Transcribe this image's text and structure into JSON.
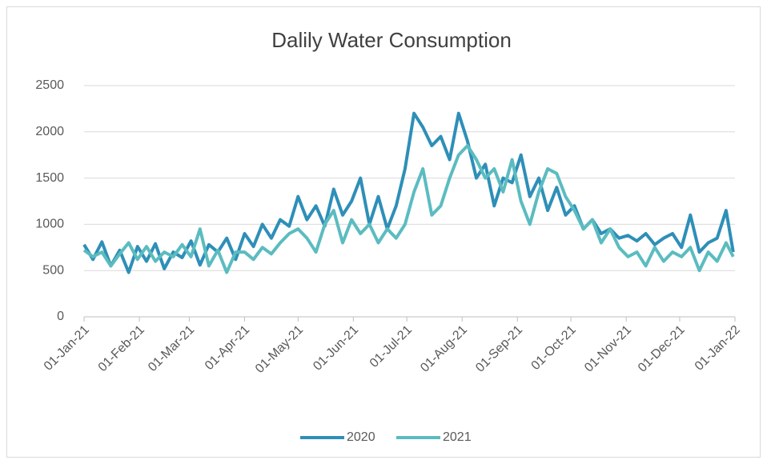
{
  "chart_data": {
    "type": "line",
    "title": "Dalily Water Consumption",
    "x": [
      "2021-01-01",
      "2021-01-06",
      "2021-01-11",
      "2021-01-16",
      "2021-01-21",
      "2021-01-26",
      "2021-01-31",
      "2021-02-05",
      "2021-02-10",
      "2021-02-15",
      "2021-02-20",
      "2021-02-25",
      "2021-03-02",
      "2021-03-07",
      "2021-03-12",
      "2021-03-17",
      "2021-03-22",
      "2021-03-27",
      "2021-04-01",
      "2021-04-06",
      "2021-04-11",
      "2021-04-16",
      "2021-04-21",
      "2021-04-26",
      "2021-05-01",
      "2021-05-06",
      "2021-05-11",
      "2021-05-16",
      "2021-05-21",
      "2021-05-26",
      "2021-05-31",
      "2021-06-05",
      "2021-06-10",
      "2021-06-15",
      "2021-06-20",
      "2021-06-25",
      "2021-06-30",
      "2021-07-05",
      "2021-07-10",
      "2021-07-15",
      "2021-07-20",
      "2021-07-25",
      "2021-07-30",
      "2021-08-04",
      "2021-08-09",
      "2021-08-14",
      "2021-08-19",
      "2021-08-24",
      "2021-08-29",
      "2021-09-03",
      "2021-09-08",
      "2021-09-13",
      "2021-09-18",
      "2021-09-23",
      "2021-09-28",
      "2021-10-03",
      "2021-10-08",
      "2021-10-13",
      "2021-10-18",
      "2021-10-23",
      "2021-10-28",
      "2021-11-02",
      "2021-11-07",
      "2021-11-12",
      "2021-11-17",
      "2021-11-22",
      "2021-11-27",
      "2021-12-02",
      "2021-12-07",
      "2021-12-12",
      "2021-12-17",
      "2021-12-22",
      "2021-12-27",
      "2021-12-31"
    ],
    "series": [
      {
        "name": "2020",
        "color": "#2e8fb8",
        "values": [
          780,
          620,
          810,
          550,
          720,
          480,
          760,
          600,
          790,
          520,
          700,
          640,
          820,
          560,
          780,
          700,
          850,
          620,
          900,
          760,
          1000,
          850,
          1050,
          980,
          1300,
          1050,
          1200,
          980,
          1380,
          1100,
          1250,
          1500,
          1000,
          1300,
          950,
          1200,
          1600,
          2200,
          2050,
          1850,
          1950,
          1700,
          2200,
          1900,
          1500,
          1650,
          1200,
          1500,
          1450,
          1750,
          1300,
          1500,
          1150,
          1400,
          1100,
          1200,
          950,
          1050,
          900,
          950,
          850,
          880,
          820,
          900,
          780,
          850,
          900,
          750,
          1100,
          700,
          800,
          850,
          1150,
          700
        ]
      },
      {
        "name": "2021",
        "color": "#5bbcc0",
        "values": [
          720,
          650,
          700,
          550,
          680,
          800,
          620,
          760,
          600,
          700,
          650,
          780,
          650,
          950,
          550,
          720,
          480,
          700,
          700,
          620,
          750,
          680,
          800,
          900,
          950,
          850,
          700,
          1000,
          1150,
          800,
          1050,
          900,
          1000,
          800,
          950,
          850,
          1000,
          1350,
          1600,
          1100,
          1200,
          1500,
          1750,
          1850,
          1700,
          1500,
          1600,
          1350,
          1700,
          1250,
          1000,
          1350,
          1600,
          1550,
          1300,
          1150,
          950,
          1050,
          800,
          950,
          750,
          650,
          700,
          550,
          750,
          600,
          700,
          650,
          750,
          500,
          700,
          600,
          800,
          650
        ]
      }
    ],
    "xlim": [
      "2021-01-01",
      "2022-01-01"
    ],
    "xticks": [
      {
        "value": "2021-01-01",
        "label": "01-Jan-21"
      },
      {
        "value": "2021-02-01",
        "label": "01-Feb-21"
      },
      {
        "value": "2021-03-01",
        "label": "01-Mar-21"
      },
      {
        "value": "2021-04-01",
        "label": "01-Apr-21"
      },
      {
        "value": "2021-05-01",
        "label": "01-May-21"
      },
      {
        "value": "2021-06-01",
        "label": "01-Jun-21"
      },
      {
        "value": "2021-07-01",
        "label": "01-Jul-21"
      },
      {
        "value": "2021-08-01",
        "label": "01-Aug-21"
      },
      {
        "value": "2021-09-01",
        "label": "01-Sep-21"
      },
      {
        "value": "2021-10-01",
        "label": "01-Oct-21"
      },
      {
        "value": "2021-11-01",
        "label": "01-Nov-21"
      },
      {
        "value": "2021-12-01",
        "label": "01-Dec-21"
      },
      {
        "value": "2022-01-01",
        "label": "01-Jan-22"
      }
    ],
    "ylim": [
      0,
      2500
    ],
    "yticks": [
      0,
      500,
      1000,
      1500,
      2000,
      2500
    ],
    "grid": true,
    "legend": "bottom"
  }
}
